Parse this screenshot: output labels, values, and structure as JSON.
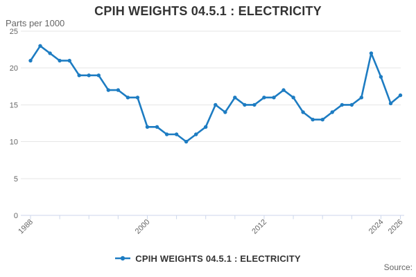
{
  "header": {
    "title": "CPIH WEIGHTS 04.5.1 : ELECTRICITY"
  },
  "axes": {
    "y_title": "Parts per 1000",
    "y_tick_labels": [
      "0",
      "5",
      "10",
      "15",
      "20",
      "25"
    ],
    "x_tick_labels": [
      "1988",
      "2000",
      "2012",
      "2024",
      "2026"
    ]
  },
  "legend": {
    "label": "CPIH WEIGHTS 04.5.1 : ELECTRICITY"
  },
  "footer": {
    "source_label": "Source:"
  },
  "colors": {
    "line": "#1d7cc2",
    "grid": "#e6e6e6",
    "axis": "#ccd6eb",
    "text_muted": "#666666",
    "text_dark": "#333333",
    "background": "#ffffff"
  },
  "chart_data": {
    "type": "line",
    "title": "CPIH WEIGHTS 04.5.1 : ELECTRICITY",
    "ylabel": "Parts per 1000",
    "xlabel": "",
    "ylim": [
      0,
      25
    ],
    "grid": true,
    "legend_position": "bottom",
    "marker": "circle",
    "x": [
      1988,
      1989,
      1990,
      1991,
      1992,
      1993,
      1994,
      1995,
      1996,
      1997,
      1998,
      1999,
      2000,
      2001,
      2002,
      2003,
      2004,
      2005,
      2006,
      2007,
      2008,
      2009,
      2010,
      2011,
      2012,
      2013,
      2014,
      2015,
      2016,
      2017,
      2018,
      2019,
      2020,
      2021,
      2022,
      2023,
      2024,
      2025,
      2026
    ],
    "series": [
      {
        "name": "CPIH WEIGHTS 04.5.1 : ELECTRICITY",
        "values": [
          21,
          23,
          22,
          21,
          21,
          19,
          19,
          19,
          17,
          17,
          16,
          16,
          12,
          12,
          11,
          11,
          10,
          11,
          12,
          15,
          14,
          16,
          15,
          15,
          16,
          16,
          17,
          16,
          14,
          13,
          13,
          14,
          15,
          15,
          16,
          22,
          18.8,
          15.2,
          16.3
        ]
      }
    ],
    "yticks": [
      0,
      5,
      10,
      15,
      20,
      25
    ],
    "xticks": [
      1988,
      1991,
      1994,
      1997,
      2000,
      2003,
      2006,
      2009,
      2012,
      2015,
      2018,
      2021,
      2024,
      2026
    ],
    "xtick_labels": [
      1988,
      2000,
      2012,
      2024,
      2026
    ]
  }
}
